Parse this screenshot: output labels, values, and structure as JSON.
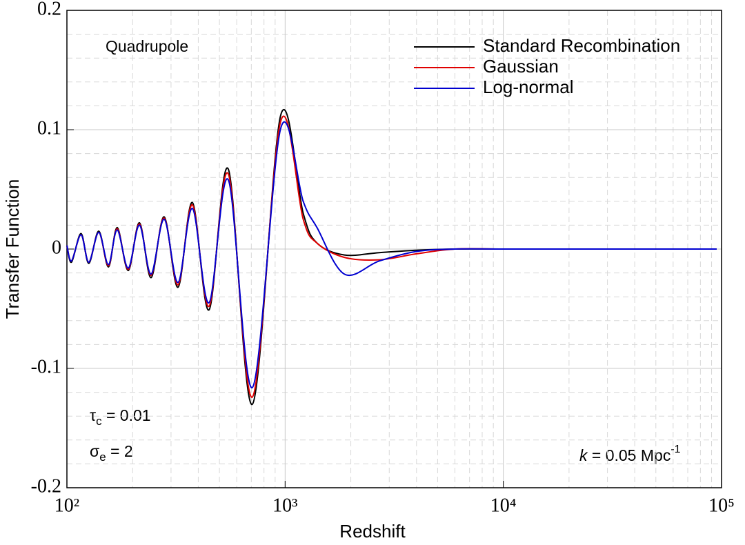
{
  "chart_data": {
    "type": "line",
    "xlabel": "Redshift",
    "ylabel": "Transfer Function",
    "log_x": true,
    "grid": true,
    "legend": "upper right",
    "xlim": [
      100,
      100000
    ],
    "ylim": [
      -0.2,
      0.2
    ],
    "xticks": [
      {
        "value": 100,
        "label": "10²"
      },
      {
        "value": 1000,
        "label": "10³"
      },
      {
        "value": 10000,
        "label": "10⁴"
      },
      {
        "value": 100000,
        "label": "10⁵"
      }
    ],
    "yticks": [
      -0.2,
      -0.1,
      0,
      0.1,
      0.2
    ],
    "x": [
      100,
      105,
      116,
      126,
      140,
      155,
      170,
      191,
      215,
      243,
      279,
      323,
      376,
      448,
      549,
      708,
      954,
      1210,
      1400,
      1870,
      2700,
      4000,
      6000,
      10000,
      20000,
      50000,
      95000
    ],
    "series": [
      {
        "name": "Standard Recombination",
        "color": "#000000",
        "values": [
          0.003,
          -0.011,
          0.013,
          -0.012,
          0.015,
          -0.015,
          0.018,
          -0.018,
          0.022,
          -0.024,
          0.027,
          -0.032,
          0.039,
          -0.051,
          0.067,
          -0.13,
          0.112,
          0.03,
          0.005,
          -0.005,
          -0.003,
          -0.001,
          0,
          0,
          0,
          0,
          0
        ]
      },
      {
        "name": "Gaussian",
        "color": "#e00000",
        "values": [
          0.003,
          -0.01,
          0.012,
          -0.011,
          0.014,
          -0.014,
          0.017,
          -0.017,
          0.021,
          -0.022,
          0.026,
          -0.03,
          0.037,
          -0.048,
          0.063,
          -0.124,
          0.107,
          0.025,
          0.005,
          -0.007,
          -0.009,
          -0.004,
          0,
          0,
          0,
          0,
          0
        ]
      },
      {
        "name": "Log-normal",
        "color": "#0000d0",
        "values": [
          0.003,
          -0.01,
          0.012,
          -0.011,
          0.014,
          -0.013,
          0.016,
          -0.016,
          0.02,
          -0.021,
          0.025,
          -0.028,
          0.034,
          -0.045,
          0.058,
          -0.116,
          0.101,
          0.04,
          0.018,
          -0.021,
          -0.01,
          -0.002,
          0,
          0,
          0,
          0,
          0
        ]
      }
    ],
    "annotations": {
      "label": "Quadrupole",
      "tau": {
        "symbol": "τ",
        "sub": "c",
        "text": " = 0.01"
      },
      "sigma": {
        "symbol": "σ",
        "sub": "e",
        "text": " = 2"
      },
      "k": {
        "symbol": "k",
        "text": " = 0.05 Mpc",
        "sup": "-1"
      }
    }
  }
}
